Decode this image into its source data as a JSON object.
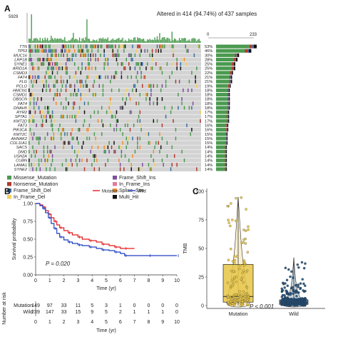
{
  "panels": {
    "a": {
      "letter": "A",
      "tmb_axis_max": "5929",
      "header": "Altered in 414 (94.74%) of 437 samples",
      "bar_scale": [
        "0",
        "233"
      ],
      "colors": {
        "Missense_Mutation": "#4a9a4f",
        "Nonsense_Mutation": "#b2382c",
        "Frame_Shift_Del": "#3a6ea5",
        "In_Frame_Del": "#f0d060",
        "Frame_Shift_Ins": "#7b4f9d",
        "In_Frame_Ins": "#e07b9a",
        "Splice_Site": "#f28e2b",
        "Multi_Hit": "#111111",
        "background": "#d3d3d3"
      },
      "legend": [
        {
          "label": "Missense_Mutation",
          "key": "Missense_Mutation"
        },
        {
          "label": "Frame_Shift_Ins",
          "key": "Frame_Shift_Ins"
        },
        {
          "label": "Nonsense_Mutation",
          "key": "Nonsense_Mutation"
        },
        {
          "label": "In_Frame_Ins",
          "key": "In_Frame_Ins"
        },
        {
          "label": "Frame_Shift_Del",
          "key": "Frame_Shift_Del"
        },
        {
          "label": "Splice_Site",
          "key": "Splice_Site"
        },
        {
          "label": "In_Frame_Del",
          "key": "In_Frame_Del"
        },
        {
          "label": "Multi_Hit",
          "key": "Multi_Hit"
        }
      ]
    },
    "b": {
      "letter": "B",
      "pvalue": "P = 0.020",
      "risk_title": "Number at risk",
      "risk_rows": [
        {
          "group": "Mutation",
          "values": [
            "149",
            "97",
            "33",
            "11",
            "5",
            "3",
            "1",
            "0",
            "0",
            "0",
            "0"
          ]
        },
        {
          "group": "Wild",
          "values": [
            "239",
            "147",
            "33",
            "15",
            "9",
            "5",
            "2",
            "1",
            "1",
            "1",
            "0"
          ]
        }
      ]
    },
    "c": {
      "letter": "C",
      "pvalue": "P < 0.001"
    }
  },
  "chart_data": [
    {
      "type": "heatmap",
      "panel": "A",
      "title": "Altered in 414 (94.74%) of 437 samples",
      "genes": [
        "TTN",
        "TP53",
        "MUC16",
        "LRP1B",
        "SYNE1",
        "ARID1A",
        "CSMD3",
        "FAT4",
        "FLG",
        "PCLO",
        "HMCN1",
        "CSMD1",
        "OBSCN",
        "FAT4",
        "DNAH5",
        "RYR2",
        "SPTA1",
        "KMT2D",
        "FAT3",
        "PIK3CA",
        "KMT2C",
        "AHNAK2",
        "COL11A1",
        "SACS",
        "DMD",
        "USH2A",
        "CUBN",
        "LAMA1",
        "SYNE2"
      ],
      "percent_labels": [
        "53%",
        "46%",
        "30%",
        "28%",
        "25%",
        "25%",
        "22%",
        "21%",
        "21%",
        "19%",
        "18%",
        "18%",
        "18%",
        "18%",
        "18%",
        "17%",
        "17%",
        "17%",
        "16%",
        "16%",
        "15%",
        "15%",
        "15%",
        "14%",
        "14%",
        "14%",
        "14%",
        "14%",
        "14%"
      ],
      "gene_counts": [
        233,
        202,
        132,
        123,
        110,
        110,
        97,
        92,
        92,
        84,
        79,
        79,
        79,
        79,
        79,
        75,
        75,
        75,
        70,
        70,
        66,
        66,
        66,
        62,
        62,
        62,
        62,
        62,
        62
      ],
      "count_axis": [
        0,
        233
      ],
      "tmb_axis": [
        0,
        5929
      ],
      "samples": 437,
      "altered": 414,
      "categories": [
        "Missense_Mutation",
        "Nonsense_Mutation",
        "Frame_Shift_Del",
        "In_Frame_Del",
        "Frame_Shift_Ins",
        "In_Frame_Ins",
        "Splice_Site",
        "Multi_Hit"
      ]
    },
    {
      "type": "line",
      "panel": "B",
      "xlabel": "Time (yr)",
      "ylabel": "Survival probability",
      "xlim": [
        0,
        10
      ],
      "ylim": [
        0,
        1
      ],
      "xticks": [
        0,
        1,
        2,
        3,
        4,
        5,
        6,
        7,
        8,
        9,
        10
      ],
      "yticks": [
        "0.00",
        "0.25",
        "0.50",
        "0.75",
        "1.00"
      ],
      "legend_position": "top",
      "series": [
        {
          "name": "Mutation",
          "color": "#e31a1c",
          "x": [
            0,
            0.3,
            0.5,
            0.7,
            0.9,
            1.1,
            1.3,
            1.5,
            1.7,
            2.0,
            2.3,
            2.6,
            3.0,
            3.3,
            3.8,
            4.3,
            4.7,
            5.2,
            5.6,
            6.0,
            6.3,
            7.0
          ],
          "y": [
            1.0,
            0.98,
            0.95,
            0.9,
            0.85,
            0.8,
            0.75,
            0.7,
            0.66,
            0.62,
            0.59,
            0.56,
            0.53,
            0.5,
            0.48,
            0.46,
            0.43,
            0.41,
            0.39,
            0.37,
            0.37,
            0.37
          ]
        },
        {
          "name": "Wild",
          "color": "#1f3fbf",
          "x": [
            0,
            0.3,
            0.5,
            0.7,
            0.9,
            1.1,
            1.3,
            1.5,
            1.7,
            2.0,
            2.3,
            2.6,
            3.0,
            3.3,
            3.8,
            4.3,
            4.7,
            5.2,
            5.6,
            6.0,
            6.3,
            7.0,
            8.0,
            9.0,
            10.0
          ],
          "y": [
            1.0,
            0.97,
            0.93,
            0.87,
            0.8,
            0.72,
            0.65,
            0.58,
            0.53,
            0.49,
            0.46,
            0.44,
            0.42,
            0.41,
            0.39,
            0.37,
            0.35,
            0.34,
            0.32,
            0.3,
            0.27,
            0.27,
            0.27,
            0.27,
            0.27
          ]
        }
      ]
    },
    {
      "type": "scatter",
      "panel": "C",
      "ylabel": "TMB",
      "ylim": [
        0,
        100
      ],
      "yticks": [
        0,
        25,
        50,
        75,
        100
      ],
      "categories": [
        "Mutation",
        "Wild"
      ],
      "box": [
        {
          "group": "Mutation",
          "q1": 3,
          "median": 8,
          "q3": 36,
          "lower_whisker": 0,
          "upper_whisker": 95,
          "color": "#e8c547"
        },
        {
          "group": "Wild",
          "q1": 1,
          "median": 2.5,
          "q3": 5,
          "lower_whisker": 0,
          "upper_whisker": 42,
          "color": "#1f4e79"
        }
      ]
    }
  ]
}
